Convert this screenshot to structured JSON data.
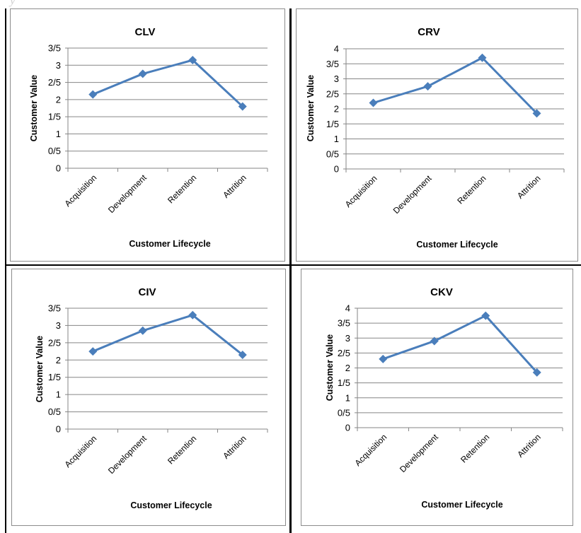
{
  "colors": {
    "series": "#4a7ebb",
    "grid": "#868686",
    "axis": "#868686"
  },
  "chart_data": [
    {
      "type": "line",
      "title": "CLV",
      "xlabel": "Customer Lifecycle",
      "ylabel": "Customer Value",
      "categories": [
        "Acquisition",
        "Development",
        "Retention",
        "Attrition"
      ],
      "values": [
        2.15,
        2.75,
        3.15,
        1.8
      ],
      "ylim": [
        0,
        3.5
      ],
      "yticks": [
        0,
        0.5,
        1,
        1.5,
        2,
        2.5,
        3,
        3.5
      ],
      "ytick_labels": [
        "0",
        "0/5",
        "1",
        "1/5",
        "2",
        "2/5",
        "3",
        "3/5"
      ],
      "grid": true,
      "marker": "diamond"
    },
    {
      "type": "line",
      "title": "CRV",
      "xlabel": "Customer Lifecycle",
      "ylabel": "Customer Value",
      "categories": [
        "Acquisition",
        "Development",
        "Retention",
        "Attrition"
      ],
      "values": [
        2.2,
        2.75,
        3.7,
        1.85
      ],
      "ylim": [
        0,
        4
      ],
      "yticks": [
        0,
        0.5,
        1,
        1.5,
        2,
        2.5,
        3,
        3.5,
        4
      ],
      "ytick_labels": [
        "0",
        "0/5",
        "1",
        "1/5",
        "2",
        "2/5",
        "3",
        "3/5",
        "4"
      ],
      "grid": true,
      "marker": "diamond"
    },
    {
      "type": "line",
      "title": "CIV",
      "xlabel": "Customer Lifecycle",
      "ylabel": "Customer Value",
      "categories": [
        "Acquisition",
        "Development",
        "Retention",
        "Attrition"
      ],
      "values": [
        2.25,
        2.85,
        3.3,
        2.15
      ],
      "ylim": [
        0,
        3.5
      ],
      "yticks": [
        0,
        0.5,
        1,
        1.5,
        2,
        2.5,
        3,
        3.5
      ],
      "ytick_labels": [
        "0",
        "0/5",
        "1",
        "1/5",
        "2",
        "2/5",
        "3",
        "3/5"
      ],
      "grid": true,
      "marker": "diamond"
    },
    {
      "type": "line",
      "title": "CKV",
      "xlabel": "Customer Lifecycle",
      "ylabel": "Customer Value",
      "categories": [
        "Acquisition",
        "Development",
        "Retention",
        "Attrition"
      ],
      "values": [
        2.3,
        2.9,
        3.75,
        1.85
      ],
      "ylim": [
        0,
        4
      ],
      "yticks": [
        0,
        0.5,
        1,
        1.5,
        2,
        2.5,
        3,
        3.5,
        4
      ],
      "ytick_labels": [
        "0",
        "0/5",
        "1",
        "1/5",
        "2",
        "2/5",
        "3",
        "3/5",
        "4"
      ],
      "grid": true,
      "marker": "diamond"
    }
  ]
}
